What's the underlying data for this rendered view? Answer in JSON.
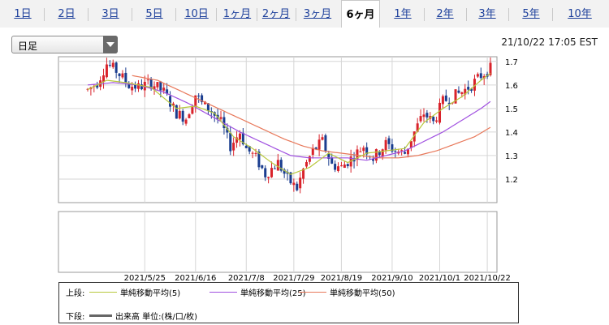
{
  "tabs": [
    {
      "label": "1日",
      "active": false
    },
    {
      "label": "2日",
      "active": false
    },
    {
      "label": "3日",
      "active": false
    },
    {
      "label": "5日",
      "active": false
    },
    {
      "label": "10日",
      "active": false
    },
    {
      "label": "1ヶ月",
      "active": false
    },
    {
      "label": "2ヶ月",
      "active": false
    },
    {
      "label": "3ヶ月",
      "active": false
    },
    {
      "label": "6ヶ月",
      "active": true
    },
    {
      "label": "1年",
      "active": false
    },
    {
      "label": "2年",
      "active": false
    },
    {
      "label": "3年",
      "active": false
    },
    {
      "label": "5年",
      "active": false
    },
    {
      "label": "10年",
      "active": false
    }
  ],
  "period_select": {
    "value": "日足"
  },
  "timestamp": "21/10/22 17:05 EST",
  "colors": {
    "up": "#d9232b",
    "down": "#1a3d8f",
    "ma5": "#b8c83c",
    "ma25": "#a050e0",
    "ma50": "#e8785a",
    "volume": "#666666"
  },
  "chart_data": {
    "type": "line",
    "ylim": [
      1.1,
      1.72
    ],
    "yticks": [
      "1.7",
      "1.6",
      "1.5",
      "1.4",
      "1.3",
      "1.2"
    ],
    "ytick_values": [
      1.7,
      1.6,
      1.5,
      1.4,
      1.3,
      1.2
    ],
    "xticks": [
      "2021/5/25",
      "2021/6/16",
      "2021/7/8",
      "2021/7/29",
      "2021/8/19",
      "2021/9/10",
      "2021/10/1",
      "2021/10/22"
    ],
    "xtick_index": [
      18,
      34,
      50,
      65,
      80,
      96,
      111,
      126
    ],
    "price_path": [
      [
        0,
        1.58
      ],
      [
        3,
        1.61
      ],
      [
        6,
        1.69
      ],
      [
        9,
        1.66
      ],
      [
        13,
        1.6
      ],
      [
        16,
        1.59
      ],
      [
        20,
        1.61
      ],
      [
        24,
        1.57
      ],
      [
        28,
        1.48
      ],
      [
        31,
        1.46
      ],
      [
        34,
        1.56
      ],
      [
        36,
        1.52
      ],
      [
        39,
        1.49
      ],
      [
        42,
        1.44
      ],
      [
        45,
        1.34
      ],
      [
        48,
        1.4
      ],
      [
        50,
        1.33
      ],
      [
        53,
        1.29
      ],
      [
        56,
        1.22
      ],
      [
        60,
        1.27
      ],
      [
        63,
        1.2
      ],
      [
        66,
        1.16
      ],
      [
        68,
        1.24
      ],
      [
        71,
        1.32
      ],
      [
        74,
        1.36
      ],
      [
        77,
        1.26
      ],
      [
        80,
        1.25
      ],
      [
        84,
        1.3
      ],
      [
        87,
        1.34
      ],
      [
        90,
        1.29
      ],
      [
        94,
        1.35
      ],
      [
        97,
        1.32
      ],
      [
        100,
        1.31
      ],
      [
        103,
        1.4
      ],
      [
        106,
        1.48
      ],
      [
        109,
        1.44
      ],
      [
        112,
        1.53
      ],
      [
        115,
        1.55
      ],
      [
        118,
        1.57
      ],
      [
        121,
        1.6
      ],
      [
        124,
        1.64
      ],
      [
        127,
        1.67
      ]
    ],
    "ma5_path": [
      [
        0,
        1.58
      ],
      [
        6,
        1.62
      ],
      [
        12,
        1.61
      ],
      [
        20,
        1.59
      ],
      [
        28,
        1.5
      ],
      [
        34,
        1.51
      ],
      [
        40,
        1.48
      ],
      [
        46,
        1.38
      ],
      [
        52,
        1.33
      ],
      [
        58,
        1.27
      ],
      [
        64,
        1.22
      ],
      [
        70,
        1.25
      ],
      [
        76,
        1.31
      ],
      [
        82,
        1.27
      ],
      [
        88,
        1.31
      ],
      [
        94,
        1.32
      ],
      [
        100,
        1.33
      ],
      [
        106,
        1.44
      ],
      [
        112,
        1.5
      ],
      [
        118,
        1.55
      ],
      [
        124,
        1.62
      ],
      [
        127,
        1.65
      ]
    ],
    "ma25_path": [
      [
        0,
        1.6
      ],
      [
        8,
        1.61
      ],
      [
        16,
        1.6
      ],
      [
        24,
        1.57
      ],
      [
        32,
        1.52
      ],
      [
        40,
        1.46
      ],
      [
        48,
        1.4
      ],
      [
        56,
        1.35
      ],
      [
        64,
        1.3
      ],
      [
        70,
        1.29
      ],
      [
        76,
        1.29
      ],
      [
        82,
        1.29
      ],
      [
        88,
        1.28
      ],
      [
        94,
        1.3
      ],
      [
        100,
        1.32
      ],
      [
        106,
        1.36
      ],
      [
        112,
        1.4
      ],
      [
        118,
        1.45
      ],
      [
        124,
        1.5
      ],
      [
        127,
        1.53
      ]
    ],
    "ma50_path": [
      [
        14,
        1.64
      ],
      [
        22,
        1.62
      ],
      [
        30,
        1.57
      ],
      [
        38,
        1.52
      ],
      [
        46,
        1.47
      ],
      [
        54,
        1.42
      ],
      [
        62,
        1.37
      ],
      [
        68,
        1.34
      ],
      [
        74,
        1.32
      ],
      [
        80,
        1.31
      ],
      [
        86,
        1.3
      ],
      [
        92,
        1.29
      ],
      [
        98,
        1.29
      ],
      [
        104,
        1.3
      ],
      [
        110,
        1.32
      ],
      [
        116,
        1.35
      ],
      [
        122,
        1.38
      ],
      [
        127,
        1.42
      ]
    ],
    "n_candles": 128
  },
  "legend": {
    "upper_label": "上段:",
    "ma5_label": "単純移動平均(5)",
    "ma25_label": "単純移動平均(25)",
    "ma50_label": "単純移動平均(50)",
    "lower_label": "下段:",
    "volume_label": "出来高 単位:(株/口/枚)"
  }
}
